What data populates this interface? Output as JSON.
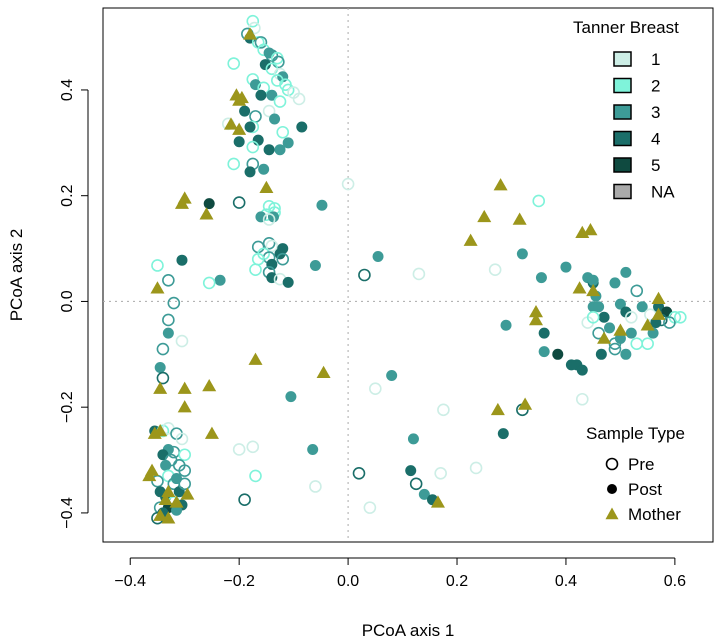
{
  "chart_data": {
    "type": "scatter",
    "xlabel": "PCoA axis 1",
    "ylabel": "PCoA axis 2",
    "xlim": [
      -0.45,
      0.67
    ],
    "ylim": [
      -0.455,
      0.555
    ],
    "xticks": [
      -0.4,
      -0.2,
      0.0,
      0.2,
      0.4,
      0.6
    ],
    "xtick_labels": [
      "−0.4",
      "−0.2",
      "0.0",
      "0.2",
      "0.4",
      "0.6"
    ],
    "yticks": [
      -0.4,
      -0.2,
      0.0,
      0.2,
      0.4
    ],
    "ytick_labels": [
      "−0.4",
      "−0.2",
      "0.0",
      "0.2",
      "0.4"
    ],
    "reference_lines": {
      "x": 0,
      "y": 0,
      "style": "dotted",
      "color": "#aaaaaa"
    },
    "legend_color": {
      "title": "Tanner Breast",
      "placement": "top-right",
      "entries": [
        {
          "label": "1",
          "color": "#cdeee6"
        },
        {
          "label": "2",
          "color": "#7ff3da"
        },
        {
          "label": "3",
          "color": "#3d9b97"
        },
        {
          "label": "4",
          "color": "#1a6e69"
        },
        {
          "label": "5",
          "color": "#0f4a40"
        },
        {
          "label": "NA",
          "color": "#aaaaaa"
        }
      ]
    },
    "legend_shape": {
      "title": "Sample Type",
      "placement": "bottom-right",
      "entries": [
        {
          "label": "Pre",
          "shape": "open-circle"
        },
        {
          "label": "Post",
          "shape": "filled-circle"
        },
        {
          "label": "Mother",
          "shape": "triangle"
        }
      ]
    },
    "mother_color": "#9c961b",
    "points": [
      [
        -0.175,
        0.53,
        "Pre",
        "2"
      ],
      [
        -0.172,
        0.517,
        "Pre",
        "1"
      ],
      [
        -0.185,
        0.506,
        "Pre",
        "3"
      ],
      [
        -0.18,
        0.498,
        "Post",
        "4"
      ],
      [
        -0.165,
        0.49,
        "Pre",
        "2"
      ],
      [
        -0.16,
        0.49,
        "Pre",
        "3"
      ],
      [
        -0.155,
        0.476,
        "Pre",
        "2"
      ],
      [
        -0.145,
        0.47,
        "Post",
        "3"
      ],
      [
        -0.14,
        0.465,
        "Pre",
        "3"
      ],
      [
        -0.13,
        0.46,
        "Pre",
        "2"
      ],
      [
        -0.128,
        0.453,
        "Pre",
        "3"
      ],
      [
        -0.152,
        0.448,
        "Post",
        "4"
      ],
      [
        -0.21,
        0.45,
        "Pre",
        "2"
      ],
      [
        -0.14,
        0.44,
        "Pre",
        "2"
      ],
      [
        -0.125,
        0.43,
        "Pre",
        "1"
      ],
      [
        -0.12,
        0.425,
        "Post",
        "3"
      ],
      [
        -0.13,
        0.418,
        "Pre",
        "2"
      ],
      [
        -0.115,
        0.41,
        "Pre",
        "2"
      ],
      [
        -0.11,
        0.4,
        "Pre",
        "2"
      ],
      [
        -0.1,
        0.395,
        "Pre",
        "1"
      ],
      [
        -0.175,
        0.42,
        "Pre",
        "2"
      ],
      [
        -0.17,
        0.41,
        "Post",
        "3"
      ],
      [
        -0.155,
        0.404,
        "Pre",
        "2"
      ],
      [
        -0.16,
        0.39,
        "Post",
        "4"
      ],
      [
        -0.14,
        0.39,
        "Post",
        "3"
      ],
      [
        -0.125,
        0.378,
        "Pre",
        "2"
      ],
      [
        -0.09,
        0.383,
        "Pre",
        "1"
      ],
      [
        -0.19,
        0.36,
        "Post",
        "4"
      ],
      [
        -0.17,
        0.35,
        "Pre",
        "3"
      ],
      [
        -0.145,
        0.36,
        "Pre",
        "1"
      ],
      [
        -0.135,
        0.345,
        "Post",
        "3"
      ],
      [
        -0.175,
        0.33,
        "Pre",
        "2"
      ],
      [
        -0.18,
        0.33,
        "Post",
        "4"
      ],
      [
        -0.22,
        0.336,
        "Pre",
        "1"
      ],
      [
        -0.085,
        0.33,
        "Post",
        "4"
      ],
      [
        -0.12,
        0.32,
        "Pre",
        "2"
      ],
      [
        -0.165,
        0.305,
        "Post",
        "4"
      ],
      [
        -0.2,
        0.302,
        "Post",
        "4"
      ],
      [
        -0.11,
        0.3,
        "Post",
        "3"
      ],
      [
        -0.175,
        0.292,
        "Pre",
        "2"
      ],
      [
        -0.145,
        0.287,
        "Post",
        "4"
      ],
      [
        -0.125,
        0.287,
        "Post",
        "3"
      ],
      [
        -0.21,
        0.26,
        "Pre",
        "2"
      ],
      [
        -0.175,
        0.26,
        "Pre",
        "3"
      ],
      [
        -0.18,
        0.245,
        "Post",
        "4"
      ],
      [
        -0.155,
        0.25,
        "Post",
        "3"
      ],
      [
        -0.2,
        0.187,
        "Pre",
        "4"
      ],
      [
        -0.145,
        0.18,
        "Pre",
        "2"
      ],
      [
        -0.135,
        0.176,
        "Pre",
        "2"
      ],
      [
        -0.135,
        0.168,
        "Pre",
        "2"
      ],
      [
        -0.15,
        0.164,
        "Pre",
        "2"
      ],
      [
        -0.16,
        0.16,
        "Post",
        "3"
      ],
      [
        -0.048,
        0.182,
        "Post",
        "3"
      ],
      [
        -0.137,
        0.16,
        "Post",
        "3"
      ],
      [
        -0.145,
        0.155,
        "Pre",
        "1"
      ],
      [
        -0.255,
        0.185,
        "Post",
        "5"
      ],
      [
        -0.145,
        0.11,
        "Pre",
        "3"
      ],
      [
        -0.14,
        0.105,
        "Pre",
        "1"
      ],
      [
        -0.165,
        0.103,
        "Pre",
        "3"
      ],
      [
        -0.12,
        0.1,
        "Post",
        "4"
      ],
      [
        -0.125,
        0.09,
        "Post",
        "4"
      ],
      [
        -0.155,
        0.09,
        "Pre",
        "2"
      ],
      [
        -0.145,
        0.083,
        "Pre",
        "3"
      ],
      [
        -0.165,
        0.08,
        "Pre",
        "2"
      ],
      [
        -0.12,
        0.08,
        "Pre",
        "3"
      ],
      [
        -0.14,
        0.07,
        "Post",
        "4"
      ],
      [
        -0.06,
        0.068,
        "Post",
        "3"
      ],
      [
        -0.17,
        0.06,
        "Pre",
        "2"
      ],
      [
        -0.145,
        0.055,
        "Pre",
        "3"
      ],
      [
        -0.14,
        0.045,
        "Post",
        "4"
      ],
      [
        -0.125,
        0.042,
        "Pre",
        "1"
      ],
      [
        -0.11,
        0.036,
        "Post",
        "4"
      ],
      [
        -0.305,
        0.078,
        "Post",
        "4"
      ],
      [
        -0.35,
        0.068,
        "Pre",
        "2"
      ],
      [
        -0.33,
        0.04,
        "Pre",
        "3"
      ],
      [
        -0.235,
        0.04,
        "Post",
        "3"
      ],
      [
        -0.255,
        0.035,
        "Pre",
        "2"
      ],
      [
        -0.32,
        -0.003,
        "Pre",
        "3"
      ],
      [
        -0.33,
        -0.035,
        "Pre",
        "3"
      ],
      [
        -0.33,
        -0.06,
        "Post",
        "3"
      ],
      [
        -0.305,
        -0.075,
        "Pre",
        "1"
      ],
      [
        -0.34,
        -0.09,
        "Pre",
        "3"
      ],
      [
        -0.345,
        -0.125,
        "Post",
        "3"
      ],
      [
        -0.34,
        -0.145,
        "Pre",
        "4"
      ],
      [
        -0.355,
        -0.245,
        "Post",
        "4"
      ],
      [
        -0.34,
        -0.245,
        "Pre",
        "2"
      ],
      [
        -0.33,
        -0.24,
        "Pre",
        "1"
      ],
      [
        -0.315,
        -0.25,
        "Pre",
        "3"
      ],
      [
        -0.305,
        -0.26,
        "Pre",
        "1"
      ],
      [
        -0.33,
        -0.28,
        "Post",
        "3"
      ],
      [
        -0.32,
        -0.285,
        "Pre",
        "3"
      ],
      [
        -0.34,
        -0.29,
        "Post",
        "4"
      ],
      [
        -0.3,
        -0.29,
        "Pre",
        "2"
      ],
      [
        -0.325,
        -0.3,
        "Pre",
        "3"
      ],
      [
        -0.335,
        -0.31,
        "Post",
        "3"
      ],
      [
        -0.31,
        -0.31,
        "Pre",
        "3"
      ],
      [
        -0.3,
        -0.32,
        "Pre",
        "3"
      ],
      [
        -0.33,
        -0.33,
        "Pre",
        "2"
      ],
      [
        -0.315,
        -0.335,
        "Post",
        "3"
      ],
      [
        -0.35,
        -0.34,
        "Pre",
        "3"
      ],
      [
        -0.32,
        -0.345,
        "Pre",
        "3"
      ],
      [
        -0.345,
        -0.36,
        "Post",
        "4"
      ],
      [
        -0.31,
        -0.36,
        "Post",
        "4"
      ],
      [
        -0.3,
        -0.345,
        "Pre",
        "3"
      ],
      [
        -0.335,
        -0.37,
        "Post",
        "4"
      ],
      [
        -0.32,
        -0.38,
        "Pre",
        "2"
      ],
      [
        -0.305,
        -0.385,
        "Post",
        "4"
      ],
      [
        -0.345,
        -0.39,
        "Pre",
        "3"
      ],
      [
        -0.33,
        -0.39,
        "Post",
        "5"
      ],
      [
        -0.35,
        -0.41,
        "Pre",
        "4"
      ],
      [
        -0.34,
        -0.4,
        "Post",
        "4"
      ],
      [
        -0.315,
        -0.395,
        "Post",
        "3"
      ],
      [
        -0.2,
        -0.28,
        "Pre",
        "1"
      ],
      [
        -0.175,
        -0.275,
        "Pre",
        "1"
      ],
      [
        -0.065,
        -0.28,
        "Post",
        "3"
      ],
      [
        -0.17,
        -0.33,
        "Pre",
        "2"
      ],
      [
        -0.06,
        -0.35,
        "Pre",
        "1"
      ],
      [
        -0.19,
        -0.375,
        "Pre",
        "4"
      ],
      [
        0.0,
        0.222,
        "Pre",
        "1"
      ],
      [
        0.03,
        0.05,
        "Pre",
        "4"
      ],
      [
        0.055,
        0.085,
        "Post",
        "3"
      ],
      [
        0.13,
        0.052,
        "Pre",
        "1"
      ],
      [
        -0.105,
        -0.18,
        "Post",
        "3"
      ],
      [
        0.05,
        -0.165,
        "Pre",
        "1"
      ],
      [
        0.08,
        -0.14,
        "Post",
        "3"
      ],
      [
        0.12,
        -0.26,
        "Post",
        "3"
      ],
      [
        0.175,
        -0.205,
        "Pre",
        "1"
      ],
      [
        0.235,
        -0.315,
        "Pre",
        "1"
      ],
      [
        0.17,
        -0.325,
        "Pre",
        "1"
      ],
      [
        0.115,
        -0.32,
        "Post",
        "4"
      ],
      [
        0.125,
        -0.345,
        "Pre",
        "4"
      ],
      [
        0.14,
        -0.365,
        "Post",
        "3"
      ],
      [
        0.155,
        -0.375,
        "Post",
        "4"
      ],
      [
        0.02,
        -0.325,
        "Pre",
        "4"
      ],
      [
        0.04,
        -0.39,
        "Pre",
        "1"
      ],
      [
        0.27,
        0.06,
        "Pre",
        "1"
      ],
      [
        0.35,
        0.19,
        "Pre",
        "2"
      ],
      [
        0.32,
        0.09,
        "Post",
        "3"
      ],
      [
        0.355,
        0.045,
        "Post",
        "3"
      ],
      [
        0.4,
        0.065,
        "Post",
        "3"
      ],
      [
        0.29,
        -0.045,
        "Post",
        "3"
      ],
      [
        0.36,
        -0.06,
        "Post",
        "4"
      ],
      [
        0.43,
        -0.185,
        "Pre",
        "1"
      ],
      [
        0.32,
        -0.205,
        "Pre",
        "4"
      ],
      [
        0.285,
        -0.25,
        "Post",
        "4"
      ],
      [
        0.44,
        0.045,
        "Post",
        "3"
      ],
      [
        0.45,
        0.035,
        "Post",
        "4"
      ],
      [
        0.45,
        0.04,
        "Post",
        "3"
      ],
      [
        0.455,
        0.01,
        "Post",
        "3"
      ],
      [
        0.49,
        0.035,
        "Post",
        "3"
      ],
      [
        0.51,
        0.055,
        "Post",
        "3"
      ],
      [
        0.53,
        0.02,
        "Pre",
        "3"
      ],
      [
        0.45,
        -0.01,
        "Post",
        "3"
      ],
      [
        0.46,
        -0.01,
        "Post",
        "3"
      ],
      [
        0.47,
        -0.03,
        "Post",
        "4"
      ],
      [
        0.5,
        -0.005,
        "Post",
        "3"
      ],
      [
        0.51,
        -0.02,
        "Post",
        "4"
      ],
      [
        0.52,
        -0.03,
        "Pre",
        "1"
      ],
      [
        0.54,
        -0.01,
        "Post",
        "3"
      ],
      [
        0.555,
        -0.025,
        "Pre",
        "1"
      ],
      [
        0.57,
        -0.01,
        "Post",
        "4"
      ],
      [
        0.585,
        -0.02,
        "Post",
        "5"
      ],
      [
        0.6,
        -0.03,
        "Pre",
        "2"
      ],
      [
        0.565,
        -0.04,
        "Post",
        "4"
      ],
      [
        0.575,
        -0.035,
        "Pre",
        "4"
      ],
      [
        0.59,
        -0.04,
        "Pre",
        "3"
      ],
      [
        0.61,
        -0.03,
        "Pre",
        "2"
      ],
      [
        0.44,
        -0.04,
        "Pre",
        "1"
      ],
      [
        0.45,
        -0.03,
        "Pre",
        "2"
      ],
      [
        0.48,
        -0.05,
        "Post",
        "3"
      ],
      [
        0.49,
        -0.08,
        "Pre",
        "3"
      ],
      [
        0.5,
        -0.07,
        "Post",
        "3"
      ],
      [
        0.52,
        -0.06,
        "Post",
        "3"
      ],
      [
        0.53,
        -0.08,
        "Pre",
        "2"
      ],
      [
        0.46,
        -0.06,
        "Pre",
        "3"
      ],
      [
        0.465,
        -0.1,
        "Post",
        "4"
      ],
      [
        0.42,
        -0.12,
        "Post",
        "4"
      ],
      [
        0.43,
        -0.13,
        "Post",
        "4"
      ],
      [
        0.36,
        -0.095,
        "Post",
        "3"
      ],
      [
        0.385,
        -0.1,
        "Post",
        "5"
      ],
      [
        0.41,
        -0.12,
        "Post",
        "4"
      ],
      [
        0.49,
        -0.09,
        "Pre",
        "3"
      ],
      [
        0.51,
        -0.1,
        "Post",
        "3"
      ],
      [
        0.55,
        -0.08,
        "Pre",
        "2"
      ],
      [
        0.56,
        -0.06,
        "Post",
        "3"
      ],
      [
        -0.18,
        0.505,
        "Mother",
        "NA"
      ],
      [
        -0.205,
        0.39,
        "Mother",
        "NA"
      ],
      [
        -0.2,
        0.38,
        "Mother",
        "NA"
      ],
      [
        -0.195,
        0.385,
        "Mother",
        "NA"
      ],
      [
        -0.2,
        0.325,
        "Mother",
        "NA"
      ],
      [
        -0.215,
        0.335,
        "Mother",
        "NA"
      ],
      [
        -0.15,
        0.215,
        "Mother",
        "NA"
      ],
      [
        -0.3,
        0.195,
        "Mother",
        "NA"
      ],
      [
        -0.305,
        0.185,
        "Mother",
        "NA"
      ],
      [
        -0.26,
        0.165,
        "Mother",
        "NA"
      ],
      [
        -0.35,
        0.025,
        "Mother",
        "NA"
      ],
      [
        -0.345,
        -0.165,
        "Mother",
        "NA"
      ],
      [
        -0.3,
        -0.165,
        "Mother",
        "NA"
      ],
      [
        -0.17,
        -0.11,
        "Mother",
        "NA"
      ],
      [
        -0.045,
        -0.135,
        "Mother",
        "NA"
      ],
      [
        -0.255,
        -0.16,
        "Mother",
        "NA"
      ],
      [
        -0.3,
        -0.2,
        "Mother",
        "NA"
      ],
      [
        -0.25,
        -0.25,
        "Mother",
        "NA"
      ],
      [
        -0.345,
        -0.245,
        "Mother",
        "NA"
      ],
      [
        -0.355,
        -0.25,
        "Mother",
        "NA"
      ],
      [
        -0.36,
        -0.32,
        "Mother",
        "NA"
      ],
      [
        -0.365,
        -0.33,
        "Mother",
        "NA"
      ],
      [
        -0.33,
        -0.36,
        "Mother",
        "NA"
      ],
      [
        -0.295,
        -0.365,
        "Mother",
        "NA"
      ],
      [
        -0.315,
        -0.38,
        "Mother",
        "NA"
      ],
      [
        -0.345,
        -0.405,
        "Mother",
        "NA"
      ],
      [
        -0.33,
        -0.41,
        "Mother",
        "NA"
      ],
      [
        -0.335,
        -0.375,
        "Mother",
        "NA"
      ],
      [
        0.28,
        0.22,
        "Mother",
        "NA"
      ],
      [
        0.25,
        0.16,
        "Mother",
        "NA"
      ],
      [
        0.225,
        0.115,
        "Mother",
        "NA"
      ],
      [
        0.315,
        0.155,
        "Mother",
        "NA"
      ],
      [
        0.43,
        0.13,
        "Mother",
        "NA"
      ],
      [
        0.445,
        0.135,
        "Mother",
        "NA"
      ],
      [
        0.45,
        0.02,
        "Mother",
        "NA"
      ],
      [
        0.425,
        0.025,
        "Mother",
        "NA"
      ],
      [
        0.345,
        -0.02,
        "Mother",
        "NA"
      ],
      [
        0.345,
        -0.035,
        "Mother",
        "NA"
      ],
      [
        0.47,
        -0.07,
        "Mother",
        "NA"
      ],
      [
        0.5,
        -0.055,
        "Mother",
        "NA"
      ],
      [
        0.57,
        0.005,
        "Mother",
        "NA"
      ],
      [
        0.55,
        -0.045,
        "Mother",
        "NA"
      ],
      [
        0.57,
        -0.025,
        "Mother",
        "NA"
      ],
      [
        0.275,
        -0.205,
        "Mother",
        "NA"
      ],
      [
        0.325,
        -0.195,
        "Mother",
        "NA"
      ],
      [
        0.165,
        -0.38,
        "Mother",
        "NA"
      ]
    ]
  }
}
